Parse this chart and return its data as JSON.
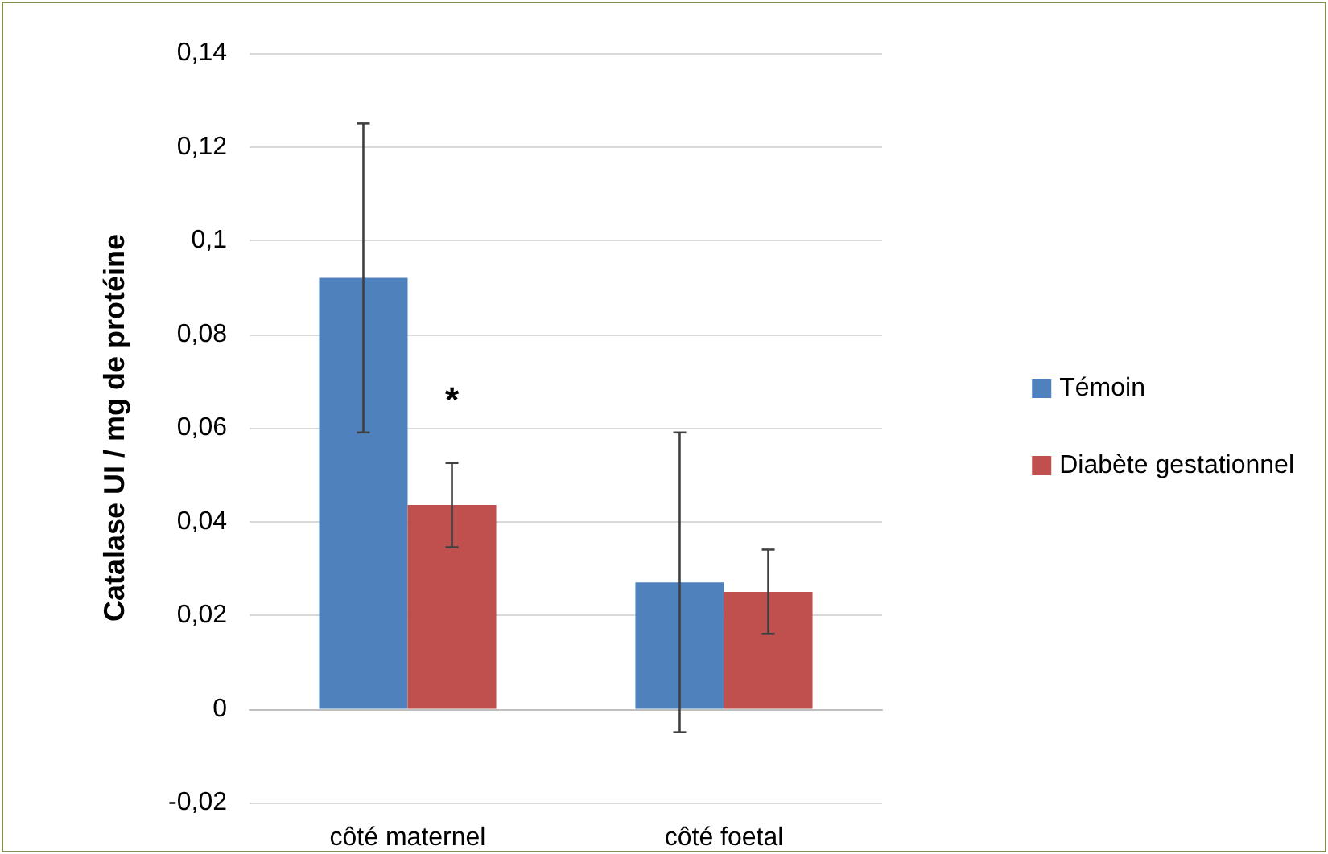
{
  "chart_data": {
    "type": "bar",
    "ylabel": "Catalase UI / mg de protéine",
    "categories": [
      "côté maternel",
      "côté foetal"
    ],
    "series": [
      {
        "name": "Témoin",
        "color": "#4f81bd",
        "values": [
          0.092,
          0.027
        ],
        "errors": [
          0.033,
          0.032
        ]
      },
      {
        "name": "Diabète gestationnel",
        "color": "#c0504d",
        "values": [
          0.0435,
          0.025
        ],
        "errors": [
          0.009,
          0.009
        ]
      }
    ],
    "ylim": [
      -0.02,
      0.14
    ],
    "yticks": [
      {
        "value": -0.02,
        "label": "-0,02"
      },
      0,
      {
        "value": 0.02,
        "label": "0,02"
      },
      {
        "value": 0.04,
        "label": "0,04"
      },
      {
        "value": 0.06,
        "label": "0,06"
      },
      {
        "value": 0.08,
        "label": "0,08"
      },
      {
        "value": 0.1,
        "label": "0,1"
      },
      {
        "value": 0.12,
        "label": "0,12"
      },
      {
        "value": 0.14,
        "label": "0,14"
      }
    ],
    "annotations": [
      {
        "text": "*",
        "x": "côté maternel",
        "y": 0.066
      }
    ],
    "grid": "y",
    "legend": "right"
  }
}
